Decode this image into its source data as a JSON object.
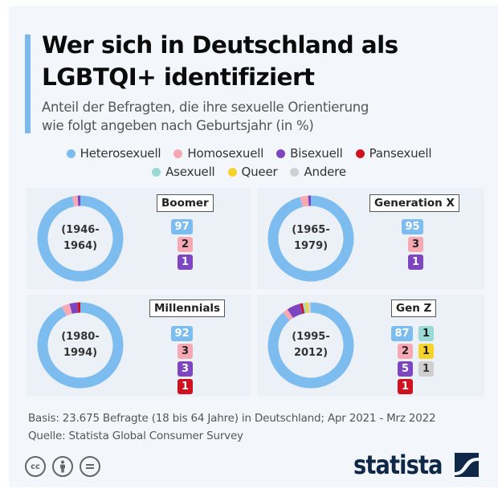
{
  "header": {
    "title_line1": "Wer sich in Deutschland als",
    "title_line2": "LGBTQI+ identifiziert",
    "subtitle_line1": "Anteil der Befragten, die ihre sexuelle Orientierung",
    "subtitle_line2": "wie folgt angeben nach Geburtsjahr (in %)"
  },
  "legend": [
    {
      "label": "Heterosexuell",
      "color": "#7cbcef"
    },
    {
      "label": "Homosexuell",
      "color": "#f6a9b2"
    },
    {
      "label": "Bisexuell",
      "color": "#7d46c0"
    },
    {
      "label": "Pansexuell",
      "color": "#d0111f"
    },
    {
      "label": "Asexuell",
      "color": "#9ad9d4"
    },
    {
      "label": "Queer",
      "color": "#f6d32b"
    },
    {
      "label": "Andere",
      "color": "#cfcfcf"
    }
  ],
  "chart_data": {
    "type": "pie",
    "variant": "donut",
    "title": "Wer sich in Deutschland als LGBTQI+ identifiziert",
    "subtitle": "Anteil der Befragten, die ihre sexuelle Orientierung wie folgt angeben nach Geburtsjahr (in %)",
    "categories": [
      "Heterosexuell",
      "Homosexuell",
      "Bisexuell",
      "Pansexuell",
      "Asexuell",
      "Queer",
      "Andere"
    ],
    "series": [
      {
        "name": "Boomer",
        "range_line1": "(1946-",
        "range_line2": "1964)",
        "values": [
          97,
          2,
          1,
          0,
          0,
          0,
          0
        ]
      },
      {
        "name": "Generation X",
        "range_line1": "(1965-",
        "range_line2": "1979)",
        "values": [
          95,
          3,
          1,
          0,
          0,
          0,
          0
        ]
      },
      {
        "name": "Millennials",
        "range_line1": "(1980-",
        "range_line2": "1994)",
        "values": [
          92,
          3,
          3,
          1,
          0,
          0,
          0
        ]
      },
      {
        "name": "Gen Z",
        "range_line1": "(1995-",
        "range_line2": "2012)",
        "values": [
          87,
          2,
          5,
          1,
          1,
          1,
          1
        ]
      }
    ],
    "unit": "%",
    "legend_position": "top"
  },
  "footer": {
    "basis": "Basis: 23.675 Befragte (18 bis 64 Jahre) in Deutschland; Apr 2021 - Mrz 2022",
    "source": "Quelle: Statista Global Consumer Survey",
    "cc_icons": [
      "cc-icon",
      "by-icon",
      "nd-icon"
    ],
    "cc_label": "cc",
    "logo_text": "statista"
  }
}
